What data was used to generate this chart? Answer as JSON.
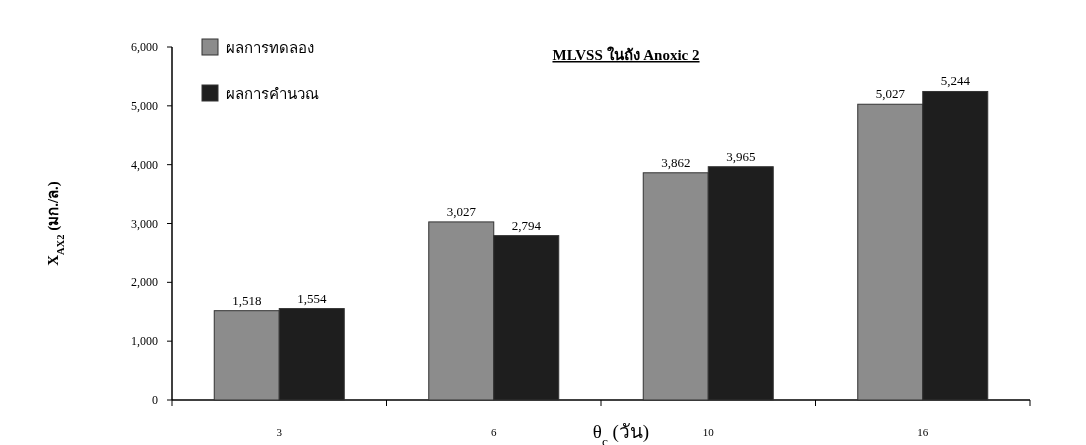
{
  "chart_data": {
    "type": "bar",
    "title": "MLVSS ในถัง Anoxic 2",
    "xlabel": "θ$_{c}$ (วัน)",
    "ylabel": "X$_{AX2}$ (มก./ล.)",
    "categories": [
      "3",
      "6",
      "10",
      "16"
    ],
    "series": [
      {
        "name": "ผลการทดลอง",
        "color": "#8c8c8c",
        "values": [
          1518,
          3027,
          3862,
          5027
        ],
        "value_labels": [
          "1,518",
          "3,027",
          "3,862",
          "5,027"
        ]
      },
      {
        "name": "ผลการคำนวณ",
        "color": "#1e1e1e",
        "values": [
          1554,
          2794,
          3965,
          5244
        ],
        "value_labels": [
          "1,554",
          "2,794",
          "3,965",
          "5,244"
        ]
      }
    ],
    "ylim": [
      0,
      6000
    ],
    "yticks": [
      {
        "value": 0,
        "label": "0"
      },
      {
        "value": 1000,
        "label": "1,000"
      },
      {
        "value": 2000,
        "label": "2,000"
      },
      {
        "value": 3000,
        "label": "3,000"
      },
      {
        "value": 4000,
        "label": "4,000"
      },
      {
        "value": 5000,
        "label": "5,000"
      },
      {
        "value": 6000,
        "label": "6,000"
      }
    ],
    "grid": false,
    "legend": "top left"
  }
}
